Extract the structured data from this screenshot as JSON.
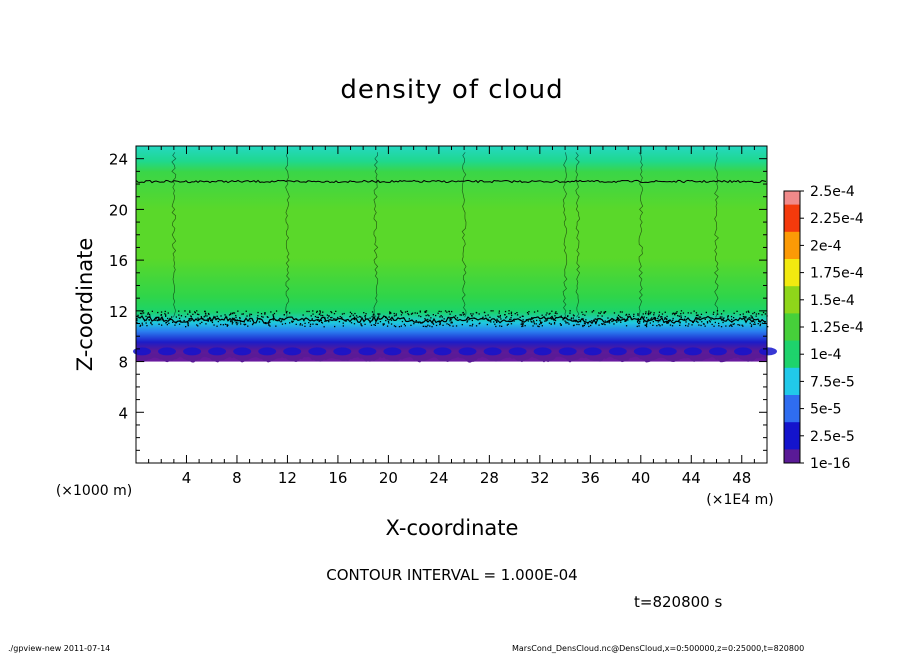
{
  "chart_data": {
    "type": "heatmap",
    "title": "density of cloud",
    "xlabel": "X-coordinate",
    "ylabel": "Z-coordinate",
    "x_unit_label": "(×1E4 m)",
    "y_unit_label": "(×1000 m)",
    "xlim": [
      0,
      50
    ],
    "ylim": [
      0,
      25
    ],
    "x_ticks": [
      4,
      8,
      12,
      16,
      20,
      24,
      28,
      32,
      36,
      40,
      44,
      48
    ],
    "y_ticks": [
      4,
      8,
      12,
      16,
      20,
      24
    ],
    "colorbar": {
      "labels": [
        "1e-16",
        "2.5e-5",
        "5e-5",
        "7.5e-5",
        "1e-4",
        "1.25e-4",
        "1.5e-4",
        "1.75e-4",
        "2e-4",
        "2.25e-4",
        "2.5e-4"
      ],
      "colors": [
        "#5a1a96",
        "#1414cc",
        "#2f6df0",
        "#21c9ea",
        "#1ed36c",
        "#46d03a",
        "#8fd61a",
        "#f2ea10",
        "#fc9a06",
        "#f43a0c",
        "#f08a8a"
      ]
    },
    "field": {
      "cloud_bottom": 8,
      "cloud_top": 25,
      "contour_lower_z": 11.3,
      "contour_upper_z": 22.2
    },
    "contour_interval_label": "CONTOUR INTERVAL = 1.000E-04",
    "time_label": "t=820800 s"
  },
  "footer": {
    "left": "./gpview-new   2011-07-14",
    "right": "MarsCond_DensCloud.nc@DensCloud,x=0:500000,z=0:25000,t=820800"
  }
}
